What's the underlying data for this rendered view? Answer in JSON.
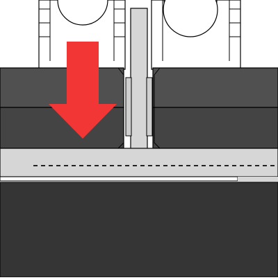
{
  "diagram": {
    "colors": {
      "background": "#ffffff",
      "outline": "#000000",
      "frame_light": "#d6d6d6",
      "frame_mid": "#cfcfcf",
      "block_dark": "#505050",
      "block_lower": "#444444",
      "base_dark": "#353535",
      "nozzle_fill": "#cdd06a",
      "arrow": "#f23535",
      "dashed_line": "#222222"
    },
    "arrow": {
      "direction": "down",
      "icon": "arrow-down-icon"
    },
    "components": [
      "left-pulley",
      "right-pulley",
      "center-post",
      "left-block",
      "right-block",
      "left-nozzle",
      "right-nozzle",
      "gantry-bar",
      "level-line",
      "bed-top",
      "bed-base"
    ]
  }
}
